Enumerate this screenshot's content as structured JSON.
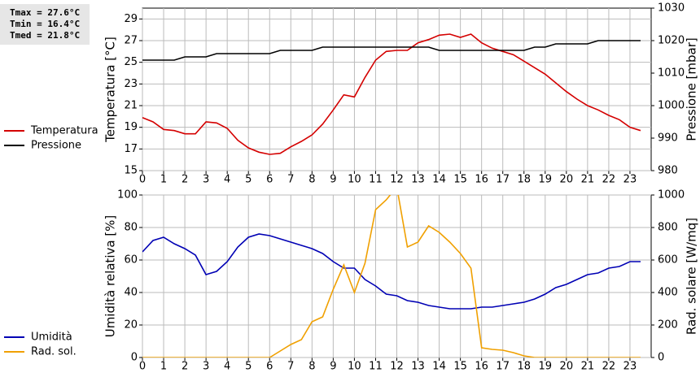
{
  "chart_data": [
    {
      "type": "line",
      "annotations": [
        "Tmax = 27.6°C",
        "Tmin = 16.4°C",
        "Tmed = 21.8°C"
      ],
      "ylabel": "Temperatura [°C]",
      "y2label": "Pressione [mbar]",
      "x": [
        0,
        0.5,
        1,
        1.5,
        2,
        2.5,
        3,
        3.5,
        4,
        4.5,
        5,
        5.5,
        6,
        6.5,
        7,
        7.5,
        8,
        8.5,
        9,
        9.5,
        10,
        10.5,
        11,
        11.5,
        12,
        12.5,
        13,
        13.5,
        14,
        14.5,
        15,
        15.5,
        16,
        16.5,
        17,
        17.5,
        18,
        18.5,
        19,
        19.5,
        20,
        20.5,
        21,
        21.5,
        22,
        22.5,
        23,
        23.5
      ],
      "xlim": [
        0,
        24
      ],
      "xticks": [
        0,
        1,
        2,
        3,
        4,
        5,
        6,
        7,
        8,
        9,
        10,
        11,
        12,
        13,
        14,
        15,
        16,
        17,
        18,
        19,
        20,
        21,
        22,
        23
      ],
      "ylim": [
        15,
        30
      ],
      "yticks": [
        15,
        17,
        19,
        21,
        23,
        25,
        27,
        29
      ],
      "y2lim": [
        980,
        1030
      ],
      "y2ticks": [
        980,
        990,
        1000,
        1010,
        1020,
        1030
      ],
      "grid": true,
      "legend": "left",
      "series": [
        {
          "name": "Temperatura",
          "color": "#d40000",
          "values": [
            19.9,
            19.5,
            18.8,
            18.7,
            18.4,
            18.4,
            19.5,
            19.4,
            18.9,
            17.8,
            17.1,
            16.7,
            16.5,
            16.6,
            17.2,
            17.7,
            18.3,
            19.3,
            20.6,
            22.0,
            21.8,
            23.6,
            25.2,
            26.0,
            26.1,
            26.1,
            26.8,
            27.1,
            27.5,
            27.6,
            27.3,
            27.6,
            26.8,
            26.3,
            26.0,
            25.7,
            25.1,
            24.5,
            23.9,
            23.1,
            22.3,
            21.6,
            21.0,
            20.6,
            20.1,
            19.7,
            19.0,
            18.7
          ]
        },
        {
          "name": "Pressione",
          "color": "#000000",
          "axis": "y2",
          "values": [
            1014,
            1014,
            1014,
            1014,
            1015,
            1015,
            1015,
            1016,
            1016,
            1016,
            1016,
            1016,
            1016,
            1017,
            1017,
            1017,
            1017,
            1018,
            1018,
            1018,
            1018,
            1018,
            1018,
            1018,
            1018,
            1018,
            1018,
            1018,
            1017,
            1017,
            1017,
            1017,
            1017,
            1017,
            1017,
            1017,
            1017,
            1018,
            1018,
            1019,
            1019,
            1019,
            1019,
            1020,
            1020,
            1020,
            1020,
            1020
          ]
        }
      ]
    },
    {
      "type": "line",
      "ylabel": "Umidità relativa [%]",
      "y2label": "Rad. solare [W/mq]",
      "x": [
        0,
        0.5,
        1,
        1.5,
        2,
        2.5,
        3,
        3.5,
        4,
        4.5,
        5,
        5.5,
        6,
        6.5,
        7,
        7.5,
        8,
        8.5,
        9,
        9.5,
        10,
        10.5,
        11,
        11.5,
        12,
        12.5,
        13,
        13.5,
        14,
        14.5,
        15,
        15.5,
        16,
        16.5,
        17,
        17.5,
        18,
        18.5,
        19,
        19.5,
        20,
        20.5,
        21,
        21.5,
        22,
        22.5,
        23,
        23.5
      ],
      "xlim": [
        0,
        24
      ],
      "xticks": [
        0,
        1,
        2,
        3,
        4,
        5,
        6,
        7,
        8,
        9,
        10,
        11,
        12,
        13,
        14,
        15,
        16,
        17,
        18,
        19,
        20,
        21,
        22,
        23
      ],
      "ylim": [
        0,
        100
      ],
      "yticks": [
        0,
        20,
        40,
        60,
        80,
        100
      ],
      "y2lim": [
        0,
        1000
      ],
      "y2ticks": [
        0,
        200,
        400,
        600,
        800,
        1000
      ],
      "grid": true,
      "legend": "left",
      "series": [
        {
          "name": "Umidità",
          "color": "#0000b4",
          "values": [
            65,
            72,
            74,
            70,
            67,
            63,
            51,
            53,
            59,
            68,
            74,
            76,
            75,
            73,
            71,
            69,
            67,
            64,
            59,
            55,
            55,
            48,
            44,
            39,
            38,
            35,
            34,
            32,
            31,
            30,
            30,
            30,
            31,
            31,
            32,
            33,
            34,
            36,
            39,
            43,
            45,
            48,
            51,
            52,
            55,
            56,
            59,
            59
          ]
        },
        {
          "name": "Rad. sol.",
          "color": "#f0a000",
          "axis": "y2",
          "values": [
            0,
            0,
            0,
            0,
            0,
            0,
            0,
            0,
            0,
            0,
            0,
            0,
            0,
            40,
            80,
            110,
            220,
            250,
            420,
            570,
            400,
            580,
            910,
            970,
            1050,
            680,
            710,
            810,
            770,
            710,
            640,
            550,
            60,
            50,
            45,
            30,
            10,
            0,
            0,
            0,
            0,
            0,
            0,
            0,
            0,
            0,
            0,
            0
          ]
        }
      ]
    }
  ]
}
